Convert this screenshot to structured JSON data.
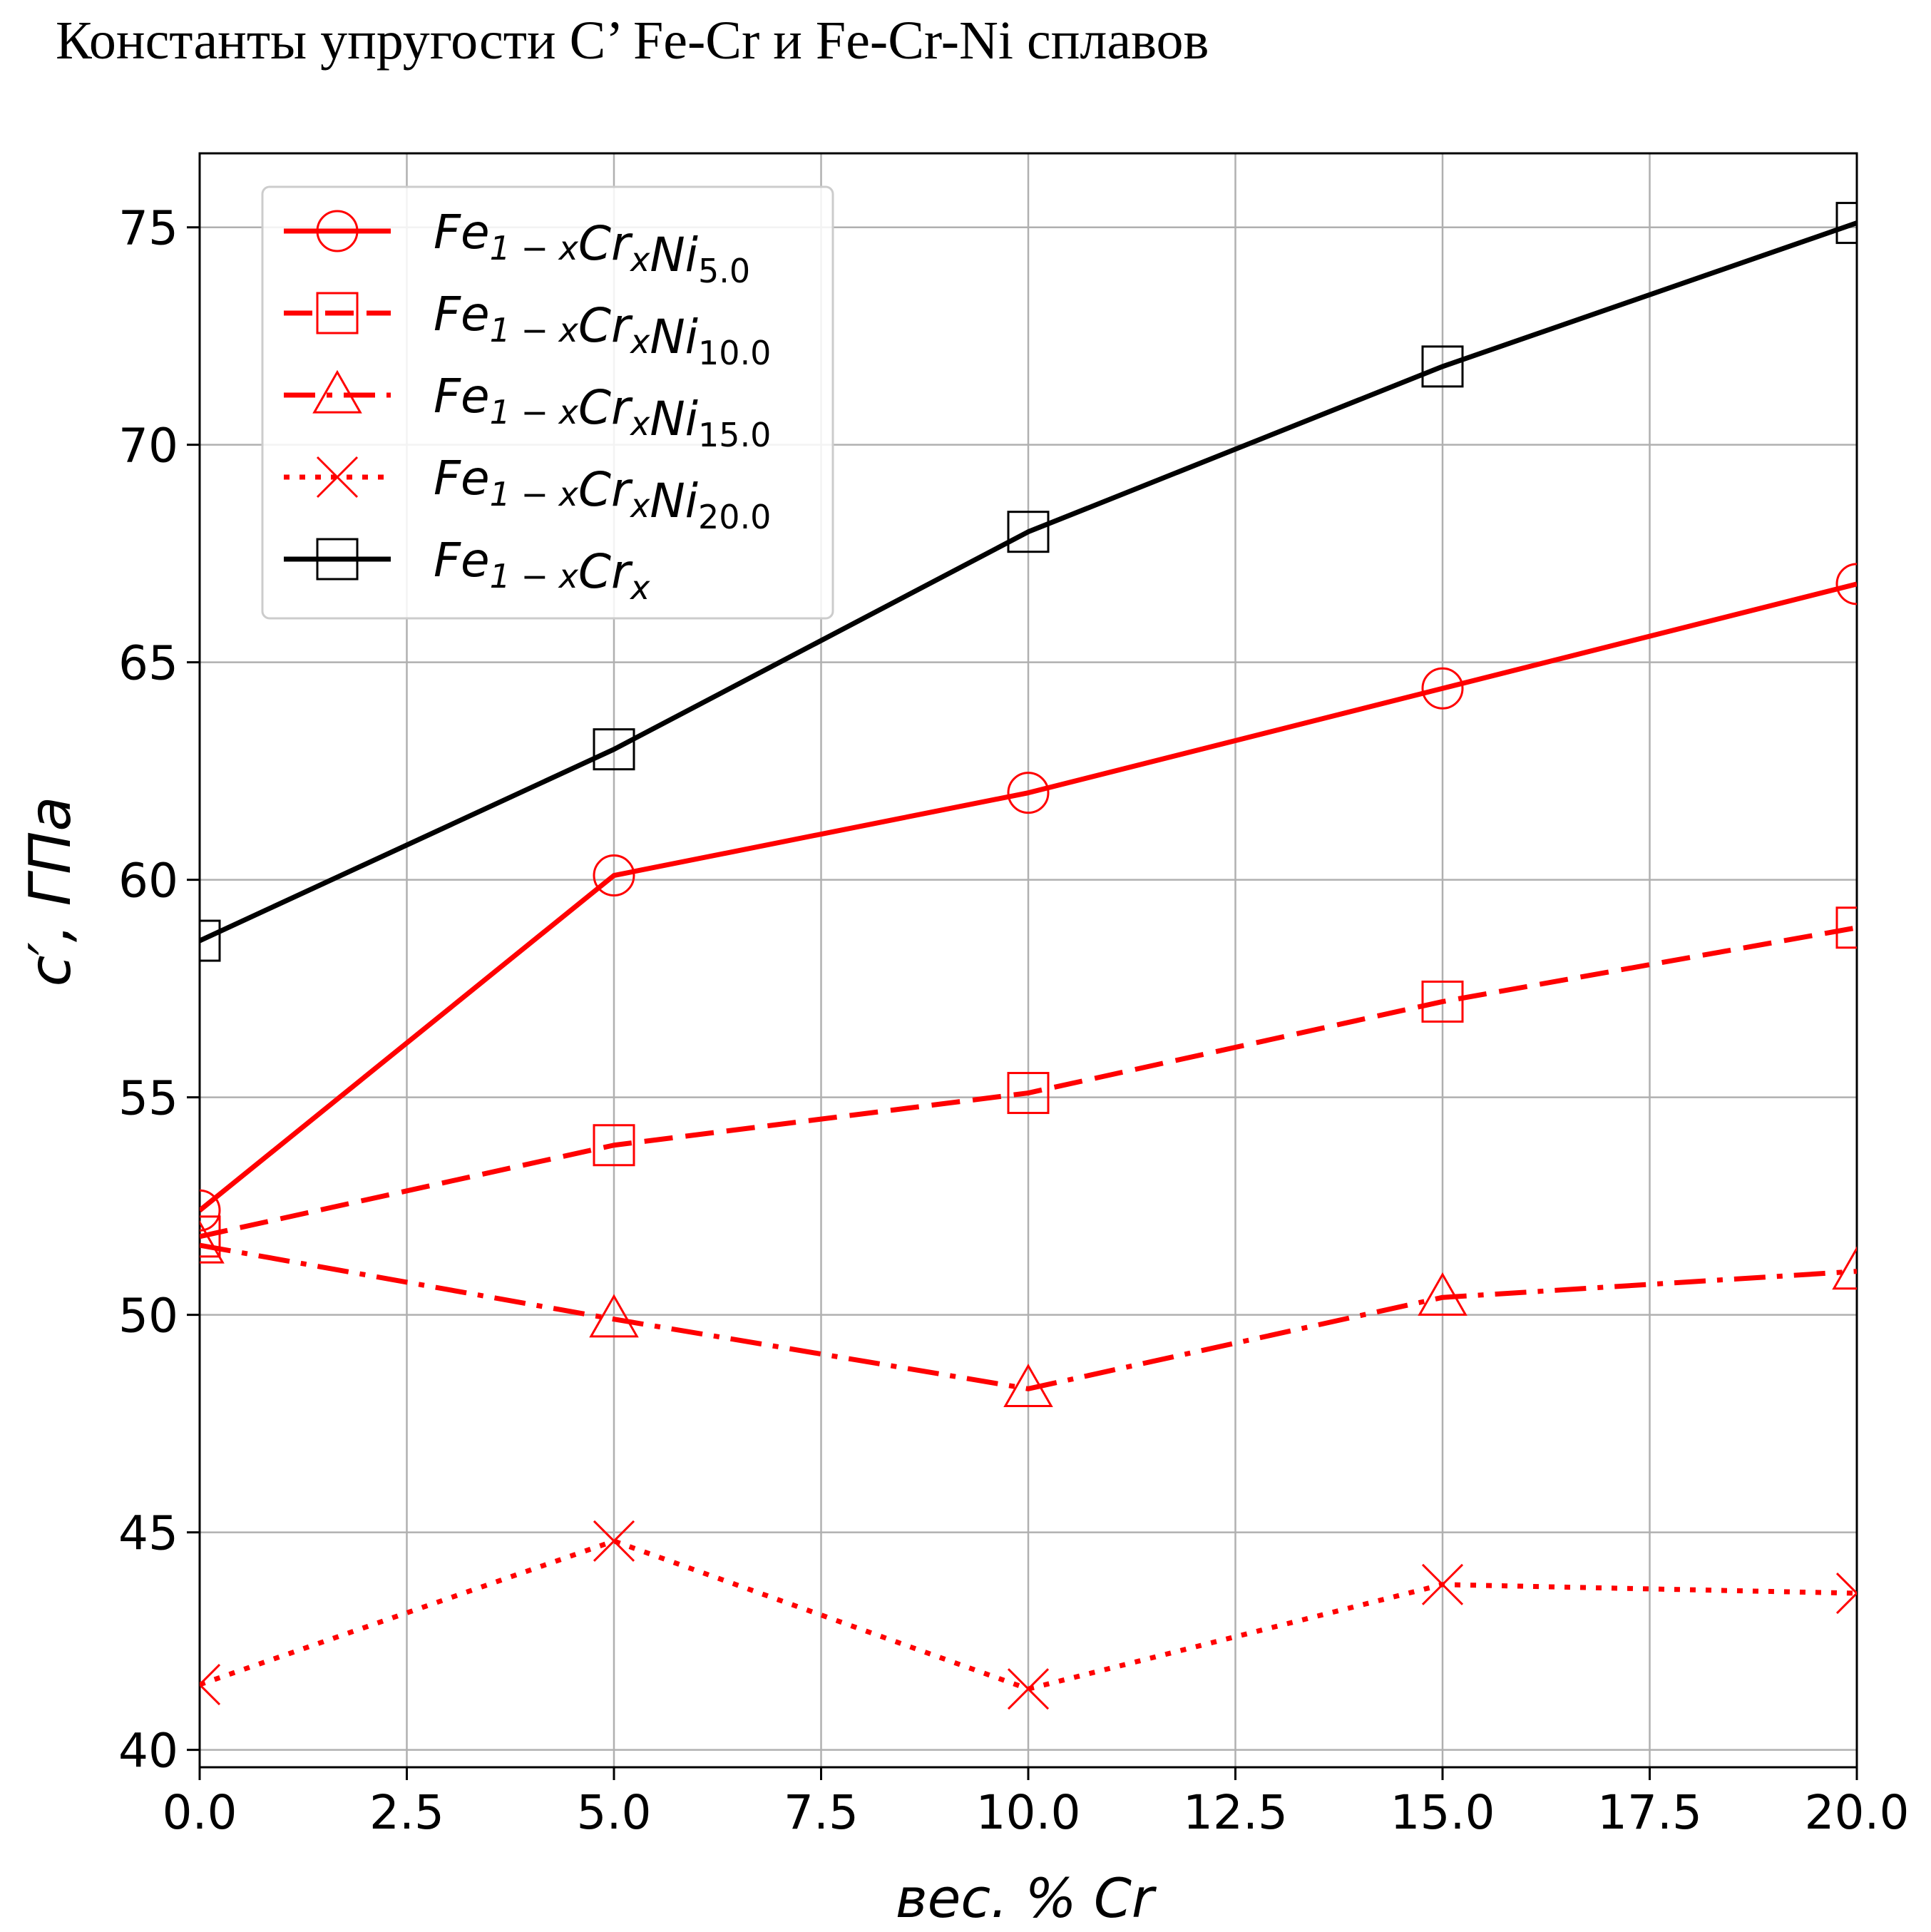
{
  "chart_data": {
    "type": "line",
    "title": "Константы упругости С’ Fe-Cr и Fe-Cr-Ni сплавов",
    "xlabel": "вес. % Cr",
    "ylabel": "c′, ГПа",
    "xlim": [
      0,
      20
    ],
    "ylim": [
      39.6,
      76.7
    ],
    "x_ticks": [
      "0.0",
      "2.5",
      "5.0",
      "7.5",
      "10.0",
      "12.5",
      "15.0",
      "17.5",
      "20.0"
    ],
    "y_ticks": [
      "40",
      "45",
      "50",
      "55",
      "60",
      "65",
      "70",
      "75"
    ],
    "grid": true,
    "legend_position": "upper-left",
    "series": [
      {
        "name": "Fe1−xCrxNi5.0",
        "name_base": "Fe",
        "name_sub1": "1 − x",
        "name_mid": "Cr",
        "name_sub2": "x",
        "name_tail": "Ni",
        "name_sub3": "5.0",
        "color": "#ff0000",
        "line_style": "solid",
        "marker": "circle",
        "x": [
          0,
          5,
          10,
          15,
          20
        ],
        "y": [
          52.4,
          60.1,
          62.0,
          64.4,
          66.8
        ]
      },
      {
        "name": "Fe1−xCrxNi10.0",
        "name_base": "Fe",
        "name_sub1": "1 − x",
        "name_mid": "Cr",
        "name_sub2": "x",
        "name_tail": "Ni",
        "name_sub3": "10.0",
        "color": "#ff0000",
        "line_style": "dashed",
        "marker": "square",
        "x": [
          0,
          5,
          10,
          15,
          20
        ],
        "y": [
          51.8,
          53.9,
          55.1,
          57.2,
          58.9
        ]
      },
      {
        "name": "Fe1−xCrxNi15.0",
        "name_base": "Fe",
        "name_sub1": "1 − x",
        "name_mid": "Cr",
        "name_sub2": "x",
        "name_tail": "Ni",
        "name_sub3": "15.0",
        "color": "#ff0000",
        "line_style": "dashdot",
        "marker": "triangle",
        "x": [
          0,
          5,
          10,
          15,
          20
        ],
        "y": [
          51.6,
          49.9,
          48.3,
          50.4,
          51.0
        ]
      },
      {
        "name": "Fe1−xCrxNi20.0",
        "name_base": "Fe",
        "name_sub1": "1 − x",
        "name_mid": "Cr",
        "name_sub2": "x",
        "name_tail": "Ni",
        "name_sub3": "20.0",
        "color": "#ff0000",
        "line_style": "dotted",
        "marker": "x",
        "x": [
          0,
          5,
          10,
          15,
          20
        ],
        "y": [
          41.5,
          44.8,
          41.4,
          43.8,
          43.6
        ]
      },
      {
        "name": "Fe1−xCrx",
        "name_base": "Fe",
        "name_sub1": "1 − x",
        "name_mid": "Cr",
        "name_sub2": "x",
        "name_tail": "",
        "name_sub3": "",
        "color": "#000000",
        "line_style": "solid",
        "marker": "square",
        "x": [
          0,
          5,
          10,
          15,
          20
        ],
        "y": [
          58.6,
          63.0,
          68.0,
          71.8,
          75.1
        ]
      }
    ]
  }
}
